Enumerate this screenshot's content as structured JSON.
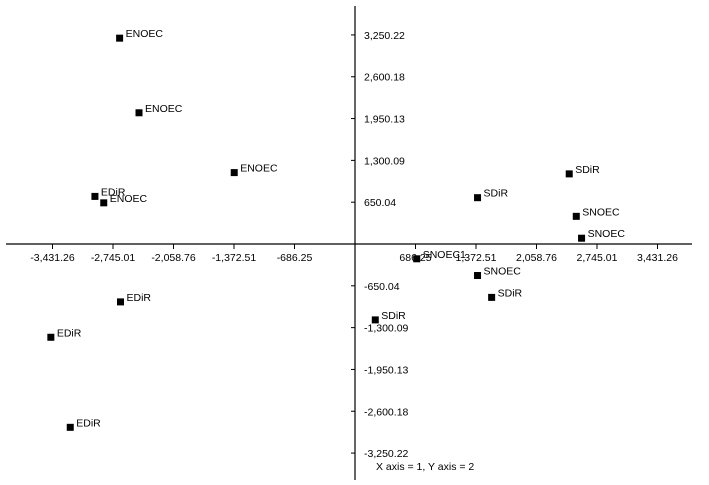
{
  "colors": {
    "background": "#ffffff",
    "ink": "#000000"
  },
  "footer": "X axis = 1, Y axis = 2",
  "chart_data": {
    "type": "scatter",
    "grid": false,
    "xlim": [
      -3800,
      3800
    ],
    "ylim": [
      -3650,
      3700
    ],
    "x_ticks": [
      -3431.26,
      -2745.01,
      -2058.76,
      -1372.51,
      -686.25,
      686.25,
      1372.51,
      2058.76,
      2745.01,
      3431.26
    ],
    "x_tick_labels": [
      "-3,431.26",
      "-2,745.01",
      "-2,058.76",
      "-1,372.51",
      "-686.25",
      "686.25",
      "1,372.51",
      "2,058.76",
      "2,745.01",
      "3,431.26"
    ],
    "y_ticks": [
      3250.22,
      2600.18,
      1950.13,
      1300.09,
      650.04,
      -650.04,
      -1300.09,
      -1950.13,
      -2600.18,
      -3250.22
    ],
    "y_tick_labels": [
      "3,250.22",
      "2,600.18",
      "1,950.13",
      "1,300.09",
      "650.04",
      "-650.04",
      "-1,300.09",
      "-1,950.13",
      "-2,600.18",
      "-3,250.22"
    ],
    "points": [
      {
        "label": "ENOEC",
        "x": -2670,
        "y": 3200
      },
      {
        "label": "ENOEC",
        "x": -2450,
        "y": 2040
      },
      {
        "label": "ENOEC",
        "x": -1370,
        "y": 1110
      },
      {
        "label": "EDiR",
        "x": -2950,
        "y": 740
      },
      {
        "label": "ENOEC",
        "x": -2850,
        "y": 640
      },
      {
        "label": "EDiR",
        "x": -2660,
        "y": -900
      },
      {
        "label": "EDiR",
        "x": -3450,
        "y": -1450
      },
      {
        "label": "EDiR",
        "x": -3230,
        "y": -2850
      },
      {
        "label": "SDiR",
        "x": 2430,
        "y": 1090
      },
      {
        "label": "SDiR",
        "x": 1390,
        "y": 720
      },
      {
        "label": "SNOEC",
        "x": 2510,
        "y": 430
      },
      {
        "label": "SNOEC",
        "x": 2570,
        "y": 90
      },
      {
        "label": "SNOEC1",
        "x": 700,
        "y": -230
      },
      {
        "label": "SNOEC",
        "x": 1390,
        "y": -490
      },
      {
        "label": "SDiR",
        "x": 1550,
        "y": -830
      },
      {
        "label": "SDiR",
        "x": 230,
        "y": -1180
      }
    ]
  }
}
